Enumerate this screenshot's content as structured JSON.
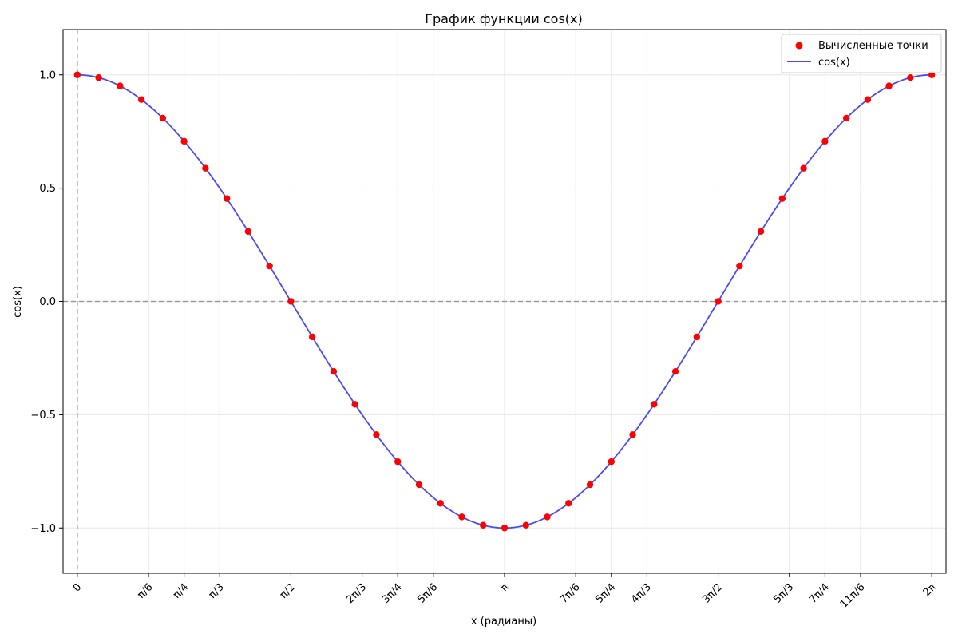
{
  "chart_data": {
    "type": "line",
    "title": "График функции cos(x)",
    "xlabel": "x (радианы)",
    "ylabel": "cos(x)",
    "xlim": [
      -0.1047,
      6.3879
    ],
    "ylim": [
      -1.2,
      1.2
    ],
    "grid": true,
    "legend_position": "top-right",
    "x_ticks": [
      {
        "value": 0,
        "label": "0"
      },
      {
        "value": 0.5236,
        "label": "π/6"
      },
      {
        "value": 0.7854,
        "label": "π/4"
      },
      {
        "value": 1.0472,
        "label": "π/3"
      },
      {
        "value": 1.5708,
        "label": "π/2"
      },
      {
        "value": 2.0944,
        "label": "2π/3"
      },
      {
        "value": 2.3562,
        "label": "3π/4"
      },
      {
        "value": 2.618,
        "label": "5π/6"
      },
      {
        "value": 3.1416,
        "label": "π"
      },
      {
        "value": 3.6652,
        "label": "7π/6"
      },
      {
        "value": 3.927,
        "label": "5π/4"
      },
      {
        "value": 4.1888,
        "label": "4π/3"
      },
      {
        "value": 4.7124,
        "label": "3π/2"
      },
      {
        "value": 5.236,
        "label": "5π/3"
      },
      {
        "value": 5.4978,
        "label": "7π/4"
      },
      {
        "value": 5.7596,
        "label": "11π/6"
      },
      {
        "value": 6.2832,
        "label": "2π"
      }
    ],
    "y_ticks": [
      {
        "value": -1.0,
        "label": "−1.0"
      },
      {
        "value": -0.5,
        "label": "−0.5"
      },
      {
        "value": 0.0,
        "label": "0.0"
      },
      {
        "value": 0.5,
        "label": "0.5"
      },
      {
        "value": 1.0,
        "label": "1.0"
      }
    ],
    "reference_lines": {
      "x": 0,
      "y": 0
    },
    "series": [
      {
        "name": "Вычисленные точки",
        "kind": "scatter",
        "color": "#ff0000",
        "x": [
          0,
          0.1571,
          0.3142,
          0.4712,
          0.6283,
          0.7854,
          0.9425,
          1.0996,
          1.2566,
          1.4137,
          1.5708,
          1.7279,
          1.885,
          2.042,
          2.1991,
          2.3562,
          2.5133,
          2.6704,
          2.8274,
          2.9845,
          3.1416,
          3.2987,
          3.4558,
          3.6128,
          3.7699,
          3.927,
          4.0841,
          4.2412,
          4.3982,
          4.5553,
          4.7124,
          4.8695,
          5.0265,
          5.1836,
          5.3407,
          5.4978,
          5.6549,
          5.812,
          5.969,
          6.1261,
          6.2832
        ],
        "y": [
          1.0,
          0.9877,
          0.9511,
          0.891,
          0.809,
          0.7071,
          0.5878,
          0.454,
          0.309,
          0.1564,
          0.0,
          -0.1564,
          -0.309,
          -0.454,
          -0.5878,
          -0.7071,
          -0.809,
          -0.891,
          -0.9511,
          -0.9877,
          -1.0,
          -0.9877,
          -0.9511,
          -0.891,
          -0.809,
          -0.7071,
          -0.5878,
          -0.454,
          -0.309,
          -0.1564,
          0.0,
          0.1564,
          0.309,
          0.454,
          0.5878,
          0.7071,
          0.809,
          0.891,
          0.9511,
          0.9877,
          1.0
        ]
      },
      {
        "name": "cos(x)",
        "kind": "line",
        "color": "#4a4af4",
        "function": "cos",
        "x_range": [
          0,
          6.2832
        ]
      }
    ]
  }
}
